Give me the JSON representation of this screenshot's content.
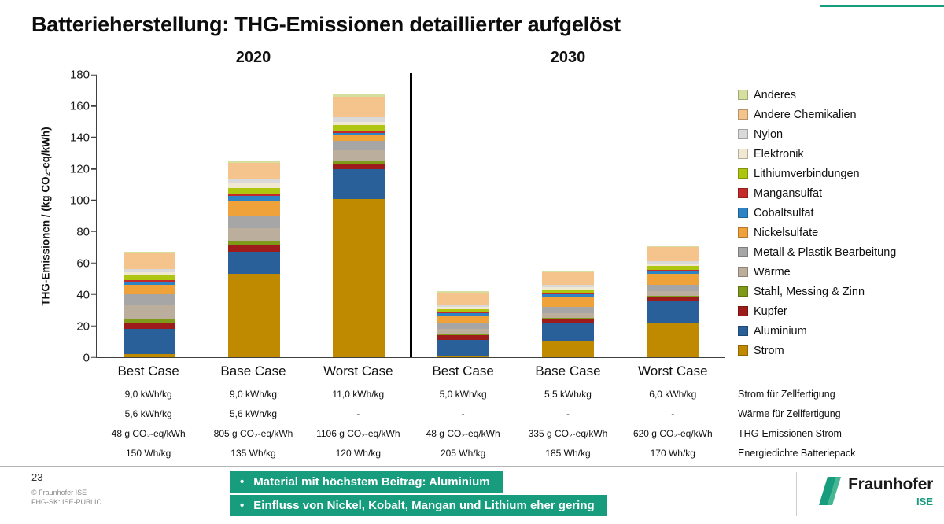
{
  "slide": {
    "title": "Batterieherstellung: THG-Emissionen detaillierter aufgelöst"
  },
  "chart_data": {
    "type": "bar",
    "stacked": true,
    "group_labels": [
      "2020",
      "2030"
    ],
    "categories": [
      "Best Case",
      "Base Case",
      "Worst Case",
      "Best Case",
      "Base Case",
      "Worst Case"
    ],
    "ylabel": "THG-Emissionen / (kg CO₂-eq/kWh)",
    "ylim": [
      0,
      180
    ],
    "ytick_step": 20,
    "grid": false,
    "legend_position": "right",
    "totals": [
      67,
      125,
      168,
      42,
      55,
      71
    ],
    "series": [
      {
        "name": "Strom",
        "color": "#C08A00",
        "values": [
          2,
          53,
          101,
          1,
          10,
          22
        ]
      },
      {
        "name": "Aluminium",
        "color": "#2A6099",
        "values": [
          16,
          14,
          19,
          10,
          12,
          14
        ]
      },
      {
        "name": "Kupfer",
        "color": "#9E1B1B",
        "values": [
          4,
          4,
          3,
          3,
          2,
          2
        ]
      },
      {
        "name": "Stahl, Messing & Zinn",
        "color": "#7F9A18",
        "values": [
          2,
          3,
          2,
          1,
          1,
          1
        ]
      },
      {
        "name": "Wärme",
        "color": "#BCAE9C",
        "values": [
          9,
          8,
          7,
          3,
          3,
          3
        ]
      },
      {
        "name": "Metall & Plastik Bearbeitung",
        "color": "#A6A6A6",
        "values": [
          7,
          8,
          6,
          4,
          4,
          4
        ]
      },
      {
        "name": "Nickelsulfate",
        "color": "#EFA13A",
        "values": [
          6,
          10,
          4,
          4,
          6,
          7
        ]
      },
      {
        "name": "Cobaltsulfat",
        "color": "#2E83C5",
        "values": [
          2,
          3,
          1,
          2,
          2,
          2
        ]
      },
      {
        "name": "Mangansulfat",
        "color": "#C42A2A",
        "values": [
          1,
          1,
          1,
          0.5,
          0.5,
          0.5
        ]
      },
      {
        "name": "Lithiumverbindungen",
        "color": "#AEC60F",
        "values": [
          3,
          4,
          4,
          2,
          2.5,
          2.5
        ]
      },
      {
        "name": "Elektronik",
        "color": "#F0E8D0",
        "values": [
          2,
          3,
          2,
          1.5,
          1.5,
          1.5
        ]
      },
      {
        "name": "Nylon",
        "color": "#D9D9D9",
        "values": [
          2,
          3,
          3,
          1,
          1.5,
          1.5
        ]
      },
      {
        "name": "Andere Chemikalien",
        "color": "#F4C48C",
        "values": [
          10,
          10,
          13,
          8,
          8,
          9
        ]
      },
      {
        "name": "Anderes",
        "color": "#D7DF9E",
        "values": [
          1,
          1,
          2,
          1,
          1,
          1
        ]
      }
    ],
    "legend_order_top_to_bottom": [
      "Anderes",
      "Andere Chemikalien",
      "Nylon",
      "Elektronik",
      "Lithiumverbindungen",
      "Mangansulfat",
      "Cobaltsulfat",
      "Nickelsulfate",
      "Metall & Plastik Bearbeitung",
      "Wärme",
      "Stahl, Messing & Zinn",
      "Kupfer",
      "Aluminium",
      "Strom"
    ]
  },
  "table": {
    "row_labels": [
      "Strom für Zellfertigung",
      "Wärme für Zellfertigung",
      "THG-Emissionen Strom",
      "Energiedichte Batteriepack"
    ],
    "rows": [
      [
        "9,0 kWh/kg",
        "9,0 kWh/kg",
        "11,0 kWh/kg",
        "5,0 kWh/kg",
        "5,5 kWh/kg",
        "6,0 kWh/kg"
      ],
      [
        "5,6 kWh/kg",
        "5,6 kWh/kg",
        "-",
        "-",
        "-",
        "-"
      ],
      [
        "48 g CO₂-eq/kWh",
        "805 g CO₂-eq/kWh",
        "1106 g CO₂-eq/kWh",
        "48 g CO₂-eq/kWh",
        "335 g CO₂-eq/kWh",
        "620 g CO₂-eq/kWh"
      ],
      [
        "150 Wh/kg",
        "135 Wh/kg",
        "120 Wh/kg",
        "205 Wh/kg",
        "185 Wh/kg",
        "170 Wh/kg"
      ]
    ]
  },
  "callout": {
    "accent_color": "#179C7D",
    "bullets": [
      "Material mit höchstem Beitrag: Aluminium",
      "Einfluss von Nickel, Kobalt, Mangan und Lithium eher gering"
    ]
  },
  "footer": {
    "page_number": "23",
    "copyright": "© Fraunhofer ISE",
    "classification": "FHG-SK: ISE-PUBLIC"
  },
  "logo": {
    "brand": "Fraunhofer",
    "institute": "ISE",
    "color": "#179C7D"
  }
}
